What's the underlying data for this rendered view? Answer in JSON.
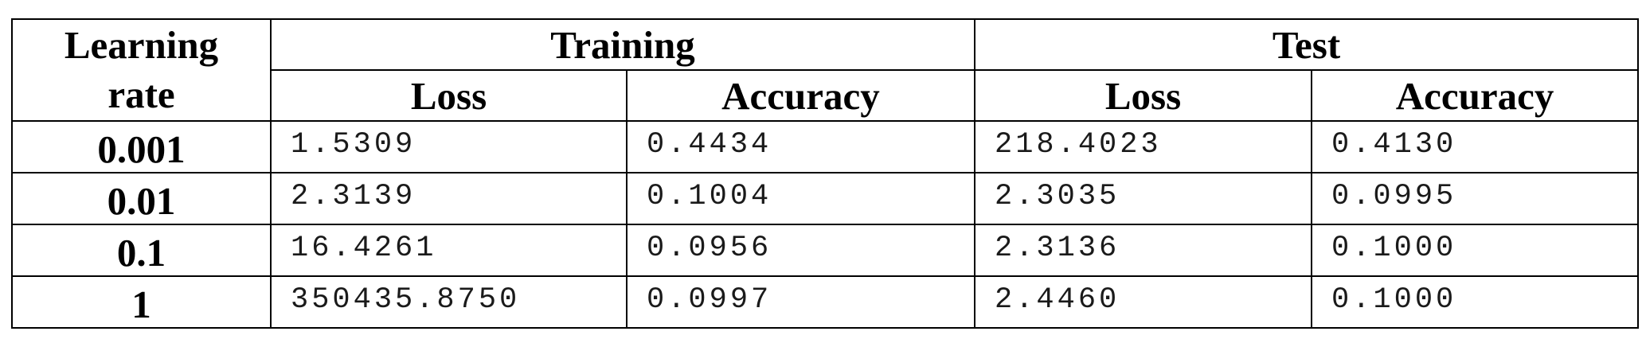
{
  "table": {
    "header": {
      "learning_rate_line1": "Learning",
      "learning_rate_line2": "rate",
      "training": "Training",
      "test": "Test",
      "sub_columns": [
        "Loss",
        "Accuracy",
        "Loss",
        "Accuracy"
      ]
    },
    "rows": [
      {
        "learning_rate": "0.001",
        "train_loss": "1.5309",
        "train_acc": "0.4434",
        "test_loss": "218.4023",
        "test_acc": "0.4130"
      },
      {
        "learning_rate": "0.01",
        "train_loss": "2.3139",
        "train_acc": "0.1004",
        "test_loss": "2.3035",
        "test_acc": "0.0995"
      },
      {
        "learning_rate": "0.1",
        "train_loss": "16.4261",
        "train_acc": "0.0956",
        "test_loss": "2.3136",
        "test_acc": "0.1000"
      },
      {
        "learning_rate": "1",
        "train_loss": "350435.8750",
        "train_acc": "0.0997",
        "test_loss": "2.4460",
        "test_acc": "0.1000"
      }
    ]
  }
}
